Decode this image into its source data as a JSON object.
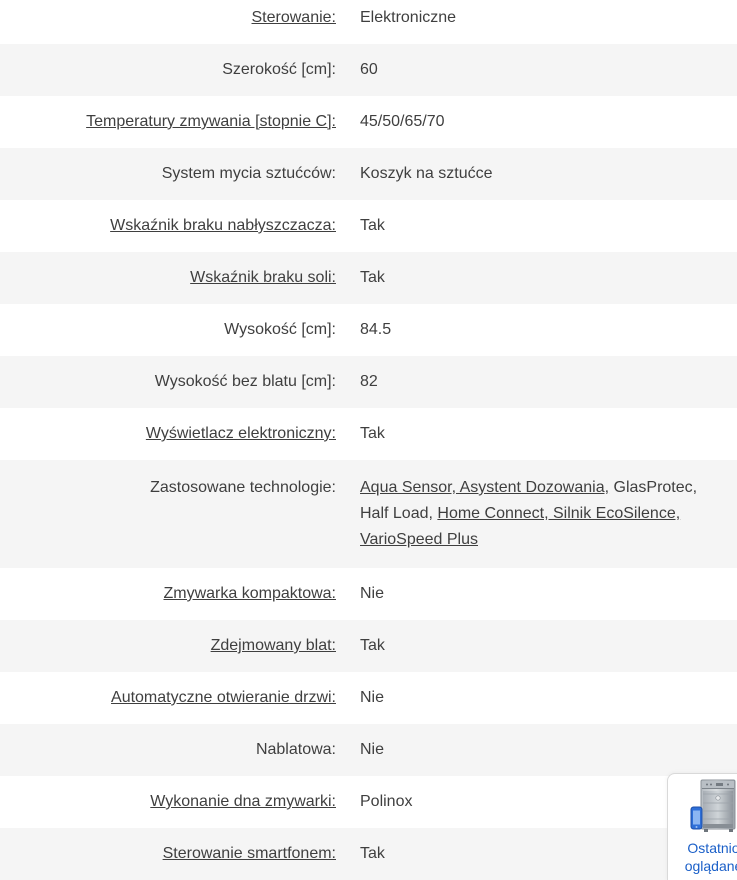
{
  "spec_table": {
    "rows": [
      {
        "label": "Sterowanie:",
        "label_link": true,
        "value": "Elektroniczne"
      },
      {
        "label": "Szerokość [cm]:",
        "label_link": false,
        "value": "60"
      },
      {
        "label": "Temperatury zmywania [stopnie C]:",
        "label_link": true,
        "value": "45/50/65/70"
      },
      {
        "label": "System mycia sztućców:",
        "label_link": false,
        "value": "Koszyk na sztućce"
      },
      {
        "label": "Wskaźnik braku nabłyszczacza:",
        "label_link": true,
        "value": "Tak"
      },
      {
        "label": "Wskaźnik braku soli:",
        "label_link": true,
        "value": "Tak"
      },
      {
        "label": "Wysokość [cm]:",
        "label_link": false,
        "value": "84.5"
      },
      {
        "label": "Wysokość bez blatu [cm]:",
        "label_link": false,
        "value": "82"
      },
      {
        "label": "Wyświetlacz elektroniczny:",
        "label_link": true,
        "value": "Tak"
      },
      {
        "label": "Zastosowane technologie:",
        "label_link": false,
        "value_segments": [
          {
            "text": "Aqua Sensor, Asystent Dozowania,",
            "underline": true
          },
          {
            "text": " GlasProtec, Half Load, ",
            "underline": false
          },
          {
            "text": "Home Connect, Silnik EcoSilence, VarioSpeed Plus",
            "underline": true
          }
        ]
      },
      {
        "label": "Zmywarka kompaktowa:",
        "label_link": true,
        "value": "Nie"
      },
      {
        "label": "Zdejmowany blat:",
        "label_link": true,
        "value": "Tak"
      },
      {
        "label": "Automatyczne otwieranie drzwi:",
        "label_link": true,
        "value": "Nie"
      },
      {
        "label": "Nablatowa:",
        "label_link": false,
        "value": "Nie"
      },
      {
        "label": "Wykonanie dna zmywarki:",
        "label_link": true,
        "value": "Polinox"
      },
      {
        "label": "Sterowanie smartfonem:",
        "label_link": true,
        "value": "Tak"
      }
    ]
  },
  "recently_viewed": {
    "title": "Ostatnio oglądane",
    "image_name": "dishwasher-with-smartphone"
  },
  "colors": {
    "row_alt_bg": "#f5f5f5",
    "text": "#3f3f3f",
    "link_blue": "#1a5fc8",
    "widget_border": "#d9d9d9"
  }
}
